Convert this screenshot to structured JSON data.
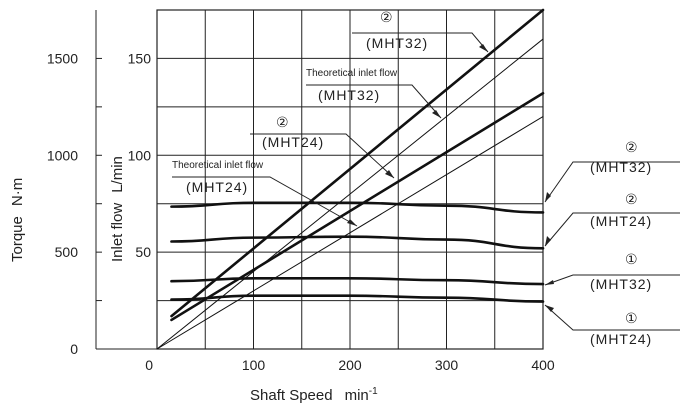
{
  "chart_data": {
    "type": "line",
    "xlabel": "Shaft Speed",
    "xlabel_unit": "min",
    "xlabel_unit_exp": "-1",
    "ylabel_left": "Torque",
    "ylabel_left_unit": "N·m",
    "ylabel_inner": "Inlet flow",
    "ylabel_inner_unit": "L/min",
    "xlim": [
      -150,
      400
    ],
    "x_ticks": [
      "0",
      "100",
      "200",
      "300",
      "400"
    ],
    "x_tick_values": [
      0,
      100,
      200,
      300,
      400
    ],
    "torque_ylim": [
      0,
      1750
    ],
    "torque_ticks": [
      "0",
      "500",
      "1000",
      "1500"
    ],
    "torque_tick_values": [
      0,
      500,
      1000,
      1500
    ],
    "flow_ylim": [
      0,
      175
    ],
    "flow_ticks": [
      "50",
      "100",
      "150"
    ],
    "flow_tick_values": [
      50,
      100,
      150
    ],
    "grid": true,
    "series": [
      {
        "axis": "flow",
        "weight": "heavy",
        "x": [
          15,
          400
        ],
        "y": [
          17,
          175
        ]
      },
      {
        "axis": "flow",
        "weight": "heavy",
        "x": [
          15,
          400
        ],
        "y": [
          15,
          132
        ]
      },
      {
        "axis": "flow",
        "weight": "thin",
        "x": [
          0,
          400
        ],
        "y": [
          0,
          160
        ]
      },
      {
        "axis": "flow",
        "weight": "thin",
        "x": [
          0,
          400
        ],
        "y": [
          0,
          120
        ]
      },
      {
        "axis": "torque",
        "weight": "heavy",
        "x": [
          15,
          100,
          200,
          300,
          400
        ],
        "y": [
          735,
          755,
          755,
          740,
          705
        ]
      },
      {
        "axis": "torque",
        "weight": "heavy",
        "x": [
          15,
          100,
          200,
          300,
          400
        ],
        "y": [
          555,
          575,
          580,
          565,
          520
        ]
      },
      {
        "axis": "torque",
        "weight": "heavy",
        "x": [
          15,
          100,
          200,
          300,
          400
        ],
        "y": [
          350,
          365,
          365,
          355,
          335
        ]
      },
      {
        "axis": "torque",
        "weight": "heavy",
        "x": [
          15,
          100,
          200,
          300,
          400
        ],
        "y": [
          255,
          275,
          275,
          265,
          245
        ]
      }
    ],
    "annotations": {
      "flow_mht32": {
        "circled": "②",
        "model": "(MHT32)"
      },
      "theo_mht32": {
        "note": "Theoretical inlet flow",
        "model": "(MHT32)"
      },
      "flow_mht24": {
        "circled": "②",
        "model": "(MHT24)"
      },
      "theo_mht24": {
        "note": "Theoretical inlet flow",
        "model": "(MHT24)"
      },
      "right_1": {
        "circled": "②",
        "model": "(MHT32)"
      },
      "right_2": {
        "circled": "②",
        "model": "(MHT24)"
      },
      "right_3": {
        "circled": "①",
        "model": "(MHT32)"
      },
      "right_4": {
        "circled": "①",
        "model": "(MHT24)"
      }
    }
  }
}
